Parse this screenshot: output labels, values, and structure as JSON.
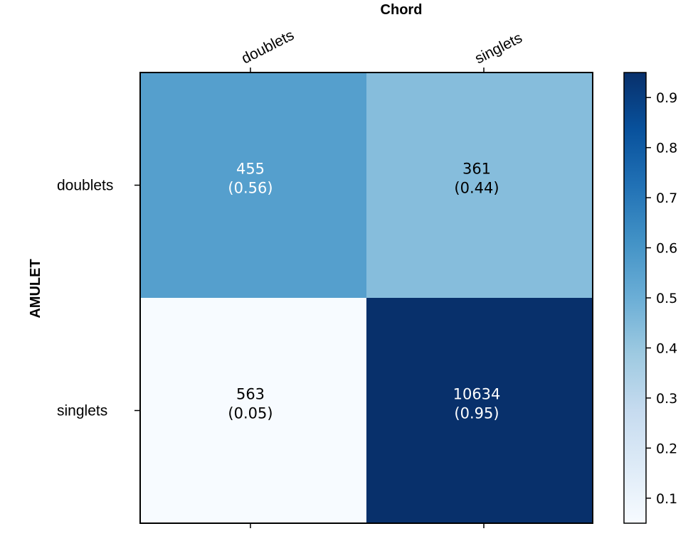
{
  "chart_data": {
    "type": "heatmap",
    "title": "Chord",
    "xlabel": "Chord",
    "ylabel": "AMULET",
    "x_categories": [
      "doublets",
      "singlets"
    ],
    "y_categories": [
      "doublets",
      "singlets"
    ],
    "counts": [
      [
        455,
        361
      ],
      [
        563,
        10634
      ]
    ],
    "fractions": [
      [
        0.56,
        0.44
      ],
      [
        0.05,
        0.95
      ]
    ],
    "count_labels": [
      [
        "455",
        "361"
      ],
      [
        "563",
        "10634"
      ]
    ],
    "fraction_labels": [
      [
        "(0.56)",
        "(0.44)"
      ],
      [
        "(0.05)",
        "(0.95)"
      ]
    ],
    "colormap": "Blues",
    "colorbar": {
      "range": [
        0.05,
        0.95
      ],
      "ticks": [
        0.1,
        0.2,
        0.3,
        0.4,
        0.5,
        0.6,
        0.7,
        0.8,
        0.9
      ],
      "tick_labels": [
        "0.1",
        "0.2",
        "0.3",
        "0.4",
        "0.5",
        "0.6",
        "0.7",
        "0.8",
        "0.9"
      ]
    },
    "colors": {
      "low": "#f7fbff",
      "high": "#08306b",
      "text_light": "#ffffff",
      "text_dark": "#000000"
    }
  }
}
